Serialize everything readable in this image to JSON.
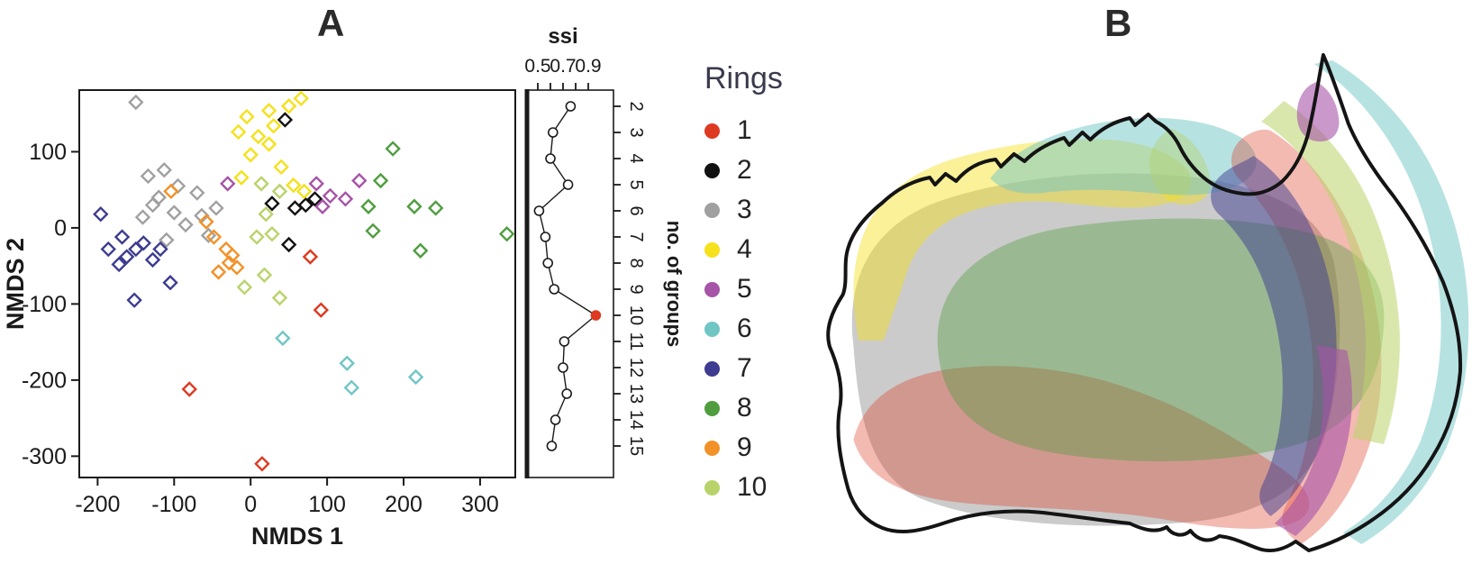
{
  "panels": {
    "a": "A",
    "b": "B"
  },
  "legend": {
    "title": "Rings",
    "items": [
      {
        "label": "1",
        "color": "#dd3a21"
      },
      {
        "label": "2",
        "color": "#111111"
      },
      {
        "label": "3",
        "color": "#a0a0a0"
      },
      {
        "label": "4",
        "color": "#f5e11c"
      },
      {
        "label": "5",
        "color": "#a654a8"
      },
      {
        "label": "6",
        "color": "#70c6c5"
      },
      {
        "label": "7",
        "color": "#3d3c90"
      },
      {
        "label": "8",
        "color": "#4f9d3f"
      },
      {
        "label": "9",
        "color": "#f29127"
      },
      {
        "label": "10",
        "color": "#b9d36a"
      }
    ]
  },
  "chart_data": [
    {
      "type": "scatter",
      "panel": "A",
      "xlabel": "NMDS 1",
      "ylabel": "NMDS 2",
      "xlim": [
        -224,
        346
      ],
      "ylim": [
        -328,
        181
      ],
      "xticks": [
        -200,
        -100,
        0,
        100,
        200,
        300
      ],
      "yticks": [
        100,
        0,
        -100,
        -200,
        -300
      ],
      "marker": "open-diamond",
      "series": [
        {
          "ring": "1",
          "color": "#dd3a21",
          "points": [
            [
              78,
              -38
            ],
            [
              92,
              -108
            ],
            [
              -80,
              -212
            ],
            [
              15,
              -310
            ]
          ]
        },
        {
          "ring": "2",
          "color": "#111111",
          "points": [
            [
              45,
              142
            ],
            [
              28,
              32
            ],
            [
              58,
              26
            ],
            [
              84,
              38
            ],
            [
              50,
              -22
            ],
            [
              72,
              30
            ]
          ]
        },
        {
          "ring": "3",
          "color": "#a0a0a0",
          "points": [
            [
              -150,
              165
            ],
            [
              -113,
              76
            ],
            [
              -134,
              68
            ],
            [
              -95,
              55
            ],
            [
              -70,
              46
            ],
            [
              -120,
              40
            ],
            [
              -141,
              14
            ],
            [
              -100,
              20
            ],
            [
              -64,
              16
            ],
            [
              -45,
              26
            ],
            [
              -85,
              4
            ],
            [
              -55,
              -10
            ],
            [
              -110,
              -16
            ],
            [
              -128,
              30
            ]
          ]
        },
        {
          "ring": "4",
          "color": "#f5e11c",
          "points": [
            [
              -5,
              146
            ],
            [
              -16,
              126
            ],
            [
              24,
              154
            ],
            [
              50,
              160
            ],
            [
              66,
              170
            ],
            [
              30,
              134
            ],
            [
              24,
              110
            ],
            [
              0,
              96
            ],
            [
              -12,
              66
            ],
            [
              40,
              80
            ],
            [
              56,
              56
            ],
            [
              70,
              48
            ],
            [
              10,
              120
            ]
          ]
        },
        {
          "ring": "5",
          "color": "#a654a8",
          "points": [
            [
              -30,
              58
            ],
            [
              86,
              58
            ],
            [
              104,
              42
            ],
            [
              124,
              38
            ],
            [
              142,
              62
            ],
            [
              94,
              28
            ]
          ]
        },
        {
          "ring": "6",
          "color": "#70c6c5",
          "points": [
            [
              42,
              -145
            ],
            [
              126,
              -178
            ],
            [
              132,
              -210
            ],
            [
              216,
              -196
            ]
          ]
        },
        {
          "ring": "7",
          "color": "#3d3c90",
          "points": [
            [
              -196,
              18
            ],
            [
              -186,
              -28
            ],
            [
              -172,
              -48
            ],
            [
              -162,
              -38
            ],
            [
              -150,
              -28
            ],
            [
              -140,
              -20
            ],
            [
              -128,
              -42
            ],
            [
              -118,
              -28
            ],
            [
              -152,
              -95
            ],
            [
              -105,
              -72
            ],
            [
              -168,
              -12
            ]
          ]
        },
        {
          "ring": "8",
          "color": "#4f9d3f",
          "points": [
            [
              186,
              104
            ],
            [
              170,
              62
            ],
            [
              154,
              28
            ],
            [
              160,
              -4
            ],
            [
              214,
              28
            ],
            [
              222,
              -30
            ],
            [
              242,
              26
            ],
            [
              335,
              -8
            ]
          ]
        },
        {
          "ring": "9",
          "color": "#f29127",
          "points": [
            [
              -104,
              48
            ],
            [
              -58,
              8
            ],
            [
              -48,
              -12
            ],
            [
              -32,
              -28
            ],
            [
              -28,
              -46
            ],
            [
              -18,
              -52
            ],
            [
              -42,
              -58
            ],
            [
              -24,
              -36
            ]
          ]
        },
        {
          "ring": "10",
          "color": "#b9d36a",
          "points": [
            [
              14,
              58
            ],
            [
              38,
              48
            ],
            [
              20,
              18
            ],
            [
              8,
              -12
            ],
            [
              18,
              -62
            ],
            [
              -8,
              -78
            ],
            [
              38,
              -92
            ],
            [
              28,
              -8
            ]
          ]
        }
      ]
    },
    {
      "type": "line",
      "panel": "A-inset",
      "title": "ssi",
      "ylabel_right": "no. of groups",
      "xlim": [
        0.46,
        1.03
      ],
      "xticks_all": [
        0.5,
        0.6,
        0.7,
        0.8,
        0.9
      ],
      "xtick_labels": [
        "0.5",
        "",
        "0.7",
        "",
        "0.9"
      ],
      "groups": [
        2,
        3,
        4,
        5,
        6,
        7,
        8,
        9,
        10,
        11,
        12,
        13,
        14,
        15
      ],
      "ssi": [
        0.76,
        0.62,
        0.6,
        0.74,
        0.51,
        0.56,
        0.58,
        0.63,
        0.96,
        0.71,
        0.7,
        0.73,
        0.64,
        0.61
      ],
      "highlight_group": 10,
      "highlight_color": "#dd3a21"
    }
  ],
  "map": {
    "panel": "B",
    "subject": "australia",
    "outline_color": "#141414",
    "regions": [
      {
        "ring": "3",
        "color": "#a0a0a0",
        "opacity": 0.55
      },
      {
        "ring": "4",
        "color": "#f5e11c",
        "opacity": 0.45
      },
      {
        "ring": "6",
        "color": "#70c6c5",
        "opacity": 0.5
      },
      {
        "ring": "1",
        "color": "#dd3a21",
        "opacity": 0.35
      },
      {
        "ring": "8",
        "color": "#4f9d3f",
        "opacity": 0.4
      },
      {
        "ring": "10",
        "color": "#b9d36a",
        "opacity": 0.55
      },
      {
        "ring": "7",
        "color": "#3d3c90",
        "opacity": 0.5
      },
      {
        "ring": "5",
        "color": "#a654a8",
        "opacity": 0.6
      }
    ]
  }
}
